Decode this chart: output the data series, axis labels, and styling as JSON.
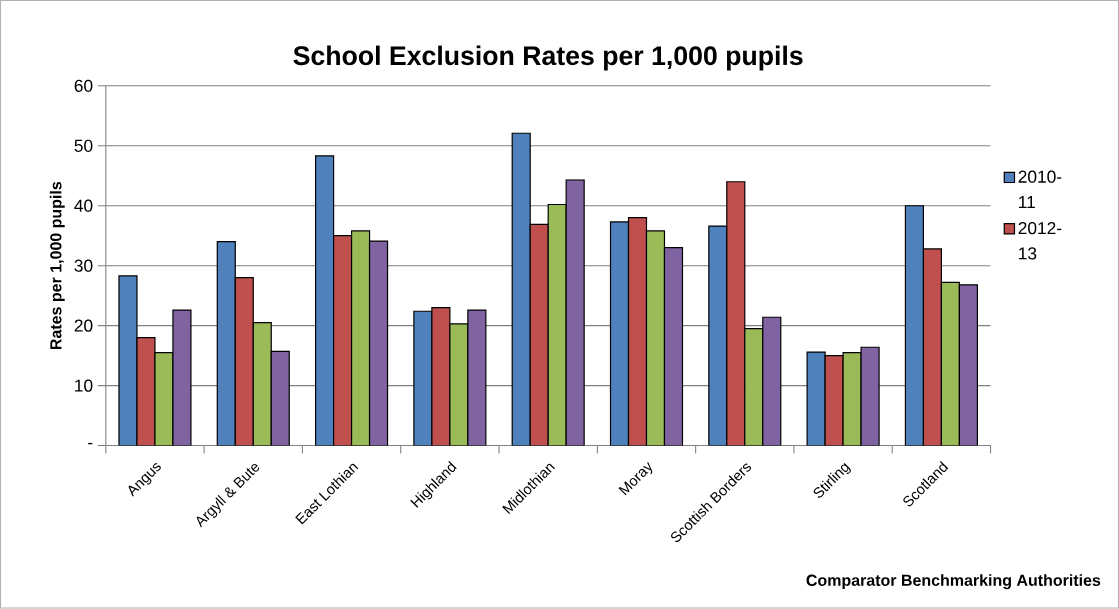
{
  "chart_data": {
    "type": "bar",
    "title": "School Exclusion Rates per 1,000 pupils",
    "xlabel": "Comparator Benchmarking Authorities",
    "ylabel": "Rates per 1,000 pupils",
    "categories": [
      "Angus",
      "Argyll & Bute",
      "East Lothian",
      "Highland",
      "Midlothian",
      "Moray",
      "Scottish Borders",
      "Stirling",
      "Scotland"
    ],
    "series": [
      {
        "name": "2010-11",
        "color": "#4f81bd",
        "values": [
          28.3,
          34.0,
          48.3,
          22.4,
          52.1,
          37.3,
          36.6,
          15.6,
          40.0
        ]
      },
      {
        "name": "2012-13",
        "color": "#c0504d",
        "values": [
          18.0,
          28.0,
          35.0,
          23.0,
          36.9,
          38.0,
          44.0,
          15.0,
          32.8
        ]
      },
      {
        "color": "#9bbb59",
        "values": [
          15.5,
          20.5,
          35.8,
          20.3,
          40.2,
          35.8,
          19.5,
          15.5,
          27.2
        ]
      },
      {
        "color": "#8064a2",
        "values": [
          22.6,
          15.7,
          34.1,
          22.6,
          44.3,
          33.0,
          21.4,
          16.4,
          26.8
        ]
      }
    ],
    "ylim": [
      0,
      60
    ],
    "yticks": [
      {
        "value": 0,
        "label": "-"
      },
      10,
      20,
      30,
      40,
      50,
      60
    ],
    "grid": "y",
    "legend": "right"
  }
}
